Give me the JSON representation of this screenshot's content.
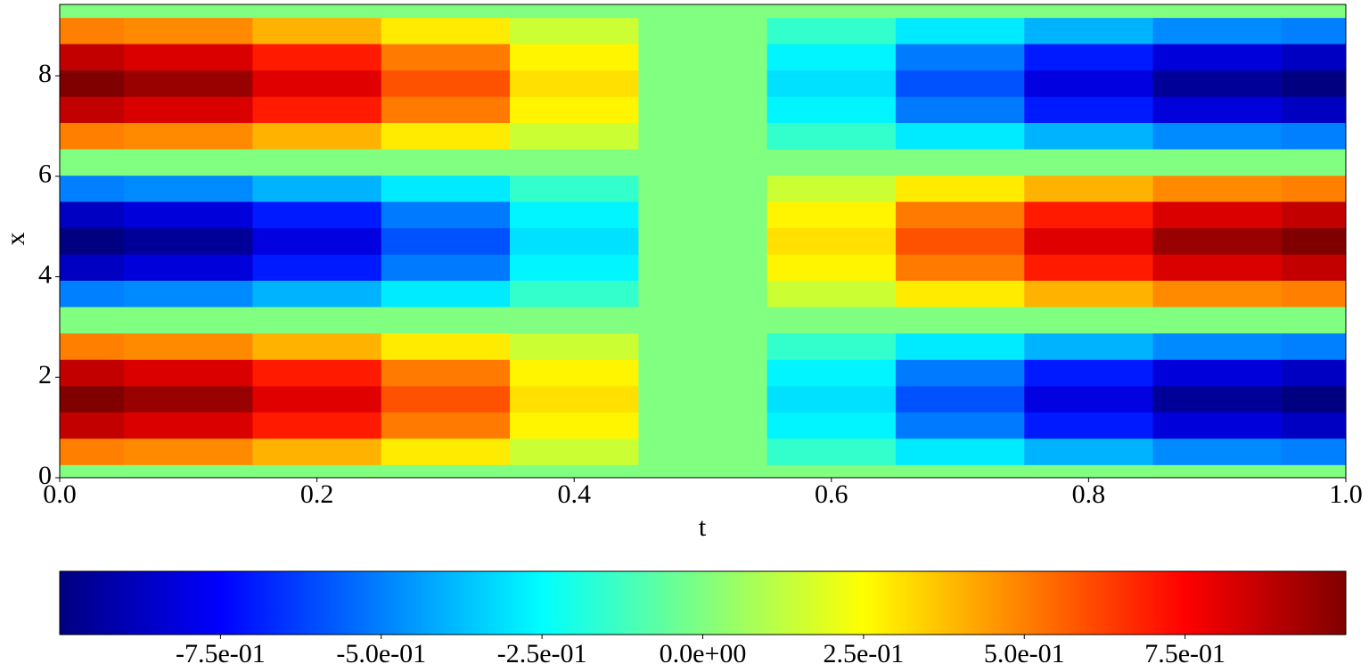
{
  "chart_data": {
    "type": "heatmap",
    "colormap": "jet",
    "xlabel": "t",
    "ylabel": "x",
    "x": [
      0,
      0.1,
      0.2,
      0.3,
      0.4,
      0.5,
      0.6,
      0.7,
      0.8,
      0.9,
      1
    ],
    "y": [
      0,
      0.52,
      1.05,
      1.57,
      2.09,
      2.62,
      3.14,
      3.67,
      4.19,
      4.71,
      5.24,
      5.76,
      6.28,
      6.81,
      7.33,
      7.85,
      8.38,
      8.9,
      9.42
    ],
    "z": [
      [
        0,
        0,
        0,
        0,
        0,
        0,
        0,
        0,
        0,
        0,
        0
      ],
      [
        0.5,
        0.48,
        0.4,
        0.29,
        0.15,
        0,
        -0.15,
        -0.29,
        -0.4,
        -0.48,
        -0.5
      ],
      [
        0.87,
        0.82,
        0.7,
        0.51,
        0.27,
        0,
        -0.27,
        -0.51,
        -0.7,
        -0.82,
        -0.87
      ],
      [
        1,
        0.95,
        0.81,
        0.59,
        0.31,
        0,
        -0.31,
        -0.59,
        -0.81,
        -0.95,
        -1
      ],
      [
        0.87,
        0.82,
        0.7,
        0.51,
        0.27,
        0,
        -0.27,
        -0.51,
        -0.7,
        -0.82,
        -0.87
      ],
      [
        0.5,
        0.48,
        0.4,
        0.29,
        0.15,
        0,
        -0.15,
        -0.29,
        -0.4,
        -0.48,
        -0.5
      ],
      [
        0,
        0,
        0,
        0,
        0,
        0,
        0,
        0,
        0,
        0,
        0
      ],
      [
        -0.5,
        -0.48,
        -0.4,
        -0.29,
        -0.15,
        0,
        0.15,
        0.29,
        0.4,
        0.48,
        0.5
      ],
      [
        -0.87,
        -0.82,
        -0.7,
        -0.51,
        -0.27,
        0,
        0.27,
        0.51,
        0.7,
        0.82,
        0.87
      ],
      [
        -1,
        -0.95,
        -0.81,
        -0.59,
        -0.31,
        0,
        0.31,
        0.59,
        0.81,
        0.95,
        1
      ],
      [
        -0.87,
        -0.82,
        -0.7,
        -0.51,
        -0.27,
        0,
        0.27,
        0.51,
        0.7,
        0.82,
        0.87
      ],
      [
        -0.5,
        -0.48,
        -0.4,
        -0.29,
        -0.15,
        0,
        0.15,
        0.29,
        0.4,
        0.48,
        0.5
      ],
      [
        0,
        0,
        0,
        0,
        0,
        0,
        0,
        0,
        0,
        0,
        0
      ],
      [
        0.5,
        0.48,
        0.4,
        0.29,
        0.15,
        0,
        -0.15,
        -0.29,
        -0.4,
        -0.48,
        -0.5
      ],
      [
        0.87,
        0.82,
        0.7,
        0.51,
        0.27,
        0,
        -0.27,
        -0.51,
        -0.7,
        -0.82,
        -0.87
      ],
      [
        1,
        0.95,
        0.81,
        0.59,
        0.31,
        0,
        -0.31,
        -0.59,
        -0.81,
        -0.95,
        -1
      ],
      [
        0.87,
        0.82,
        0.7,
        0.51,
        0.27,
        0,
        -0.27,
        -0.51,
        -0.7,
        -0.82,
        -0.87
      ],
      [
        0.5,
        0.48,
        0.4,
        0.29,
        0.15,
        0,
        -0.15,
        -0.29,
        -0.4,
        -0.48,
        -0.5
      ],
      [
        0,
        0,
        0,
        0,
        0,
        0,
        0,
        0,
        0,
        0,
        0
      ]
    ],
    "xlim": [
      0,
      1
    ],
    "ylim": [
      0,
      9.42
    ],
    "xticks": [
      {
        "value": 0,
        "label": "0.0"
      },
      {
        "value": 0.2,
        "label": "0.2"
      },
      {
        "value": 0.4,
        "label": "0.4"
      },
      {
        "value": 0.6,
        "label": "0.6"
      },
      {
        "value": 0.8,
        "label": "0.8"
      },
      {
        "value": 1,
        "label": "1.0"
      }
    ],
    "yticks": [
      0,
      2,
      4,
      6,
      8
    ],
    "colorbar": {
      "zlim": [
        -1,
        1
      ],
      "ticks": [
        {
          "value": -0.75,
          "label": "-7.5e-01"
        },
        {
          "value": -0.5,
          "label": "-5.0e-01"
        },
        {
          "value": -0.25,
          "label": "-2.5e-01"
        },
        {
          "value": 0,
          "label": "0.0e+00"
        },
        {
          "value": 0.25,
          "label": "2.5e-01"
        },
        {
          "value": 0.5,
          "label": "5.0e-01"
        },
        {
          "value": 0.75,
          "label": "7.5e-01"
        }
      ]
    }
  }
}
